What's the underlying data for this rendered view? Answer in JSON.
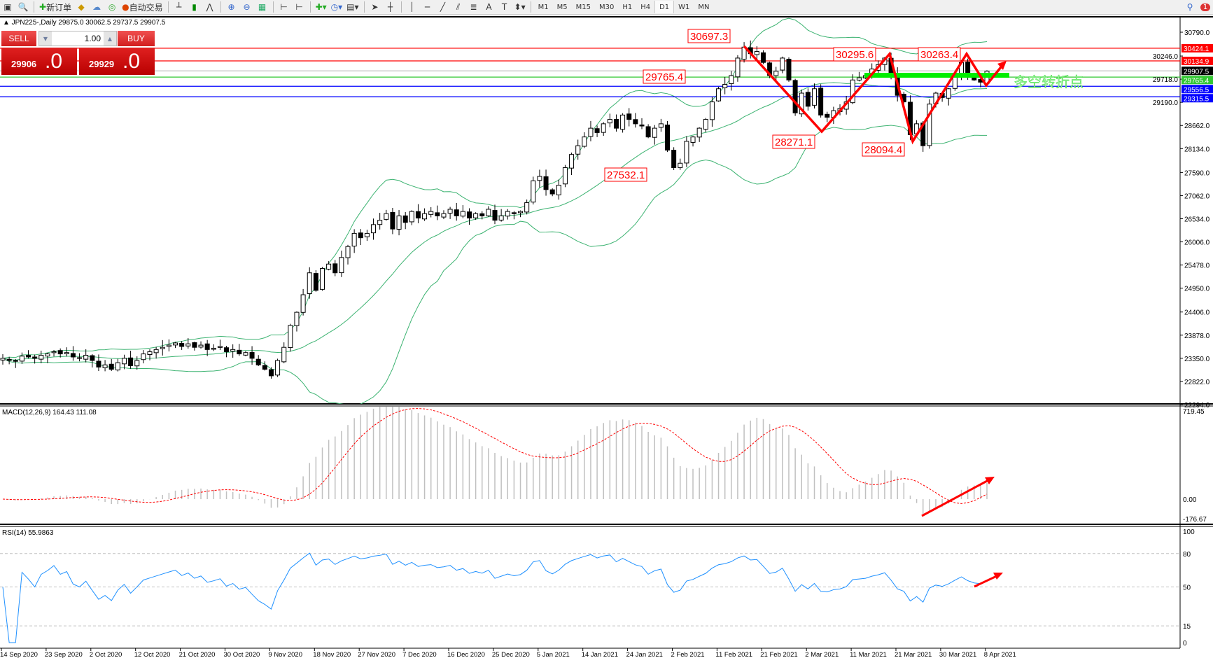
{
  "toolbar": {
    "new_order": "新订单",
    "auto_trading": "自动交易",
    "timeframes": [
      "M1",
      "M5",
      "M15",
      "M30",
      "H1",
      "H4",
      "D1",
      "W1",
      "MN"
    ],
    "active_timeframe": "D1",
    "notification_count": "1"
  },
  "chart": {
    "header": "▲ JPN225-,Daily  29875.0 30062.5 29737.5 29907.5",
    "symbol": "JPN225-",
    "timeframe": "Daily"
  },
  "trade_panel": {
    "sell": "SELL",
    "buy": "BUY",
    "lot": "1.00",
    "sell_main": "29906",
    "sell_big": ".0",
    "buy_main": "29929",
    "buy_big": ".0"
  },
  "price_axis": {
    "ticks": [
      "30790.0",
      "30246.0",
      "29718.0",
      "29190.0",
      "28662.0",
      "28134.0",
      "27590.0",
      "27062.0",
      "26534.0",
      "26006.0",
      "25478.0",
      "24950.0",
      "24406.0",
      "23878.0",
      "23350.0",
      "22822.0",
      "22294.0"
    ]
  },
  "levels": [
    {
      "value": "30424.1",
      "color": "#ff0000"
    },
    {
      "value": "30134.9",
      "color": "#ff0000"
    },
    {
      "value": "29907.5",
      "color": "#000000",
      "line": "#c0c0c0"
    },
    {
      "value": "29765.4",
      "color": "#32c832"
    },
    {
      "value": "29556.5",
      "color": "#0000ff"
    },
    {
      "value": "29315.5",
      "color": "#0000ff"
    }
  ],
  "annotations": {
    "labels": [
      "30697.3",
      "30295.6",
      "30263.4",
      "29765.4",
      "28271.1",
      "28094.4",
      "27532.1"
    ],
    "turning_point_text": "多空转折点",
    "arrow_color": "#ff0000",
    "zone_color": "#00ee00"
  },
  "macd": {
    "label": "MACD(12,26,9) 164.43 111.08",
    "max": "719.45",
    "zero": "0.00",
    "min": "-176.67"
  },
  "rsi": {
    "label": "RSI(14) 55.9863",
    "levels": [
      "100",
      "80",
      "50",
      "15",
      "0"
    ]
  },
  "date_axis": [
    "14 Sep 2020",
    "23 Sep 2020",
    "2 Oct 2020",
    "12 Oct 2020",
    "21 Oct 2020",
    "30 Oct 2020",
    "9 Nov 2020",
    "18 Nov 2020",
    "27 Nov 2020",
    "7 Dec 2020",
    "16 Dec 2020",
    "25 Dec 2020",
    "5 Jan 2021",
    "14 Jan 2021",
    "24 Jan 2021",
    "2 Feb 2021",
    "11 Feb 2021",
    "21 Feb 2021",
    "2 Mar 2021",
    "11 Mar 2021",
    "21 Mar 2021",
    "30 Mar 2021",
    "8 Apr 2021"
  ],
  "colors": {
    "bands": "#3cb371",
    "macd_hist": "#c0c0c0",
    "macd_signal": "#ff0000",
    "rsi": "#1e90ff"
  },
  "series": {
    "closes": [
      23350,
      23300,
      23280,
      23400,
      23380,
      23350,
      23420,
      23450,
      23500,
      23450,
      23480,
      23380,
      23350,
      23420,
      23300,
      23150,
      23200,
      23100,
      23250,
      23350,
      23180,
      23300,
      23450,
      23500,
      23550,
      23600,
      23650,
      23700,
      23620,
      23680,
      23600,
      23650,
      23550,
      23580,
      23620,
      23500,
      23550,
      23450,
      23480,
      23350,
      23200,
      23100,
      22950,
      23300,
      23600,
      24100,
      24400,
      24800,
      25300,
      24900,
      25400,
      25500,
      25300,
      25650,
      25900,
      26200,
      26100,
      26200,
      26400,
      26500,
      26650,
      26300,
      26600,
      26450,
      26700,
      26550,
      26650,
      26700,
      26600,
      26650,
      26750,
      26600,
      26700,
      26550,
      26650,
      26600,
      26750,
      26500,
      26600,
      26700,
      26650,
      26700,
      26900,
      27400,
      27500,
      27200,
      27100,
      27300,
      27700,
      28000,
      28200,
      28400,
      28600,
      28500,
      28700,
      28800,
      28600,
      28900,
      28800,
      28700,
      28650,
      28400,
      28600,
      28700,
      28100,
      27700,
      27800,
      28300,
      28400,
      28600,
      28800,
      29200,
      29500,
      29600,
      29800,
      30200,
      30450,
      30300,
      30350,
      30100,
      29800,
      29900,
      30200,
      29700,
      28950,
      29400,
      29100,
      29500,
      28900,
      28850,
      29000,
      29050,
      29200,
      29700,
      29750,
      29800,
      29950,
      30050,
      30200,
      29850,
      29350,
      29200,
      28450,
      28700,
      28200,
      29150,
      29400,
      29300,
      29500,
      29800,
      30100,
      29850,
      29700,
      29650,
      29900
    ]
  }
}
